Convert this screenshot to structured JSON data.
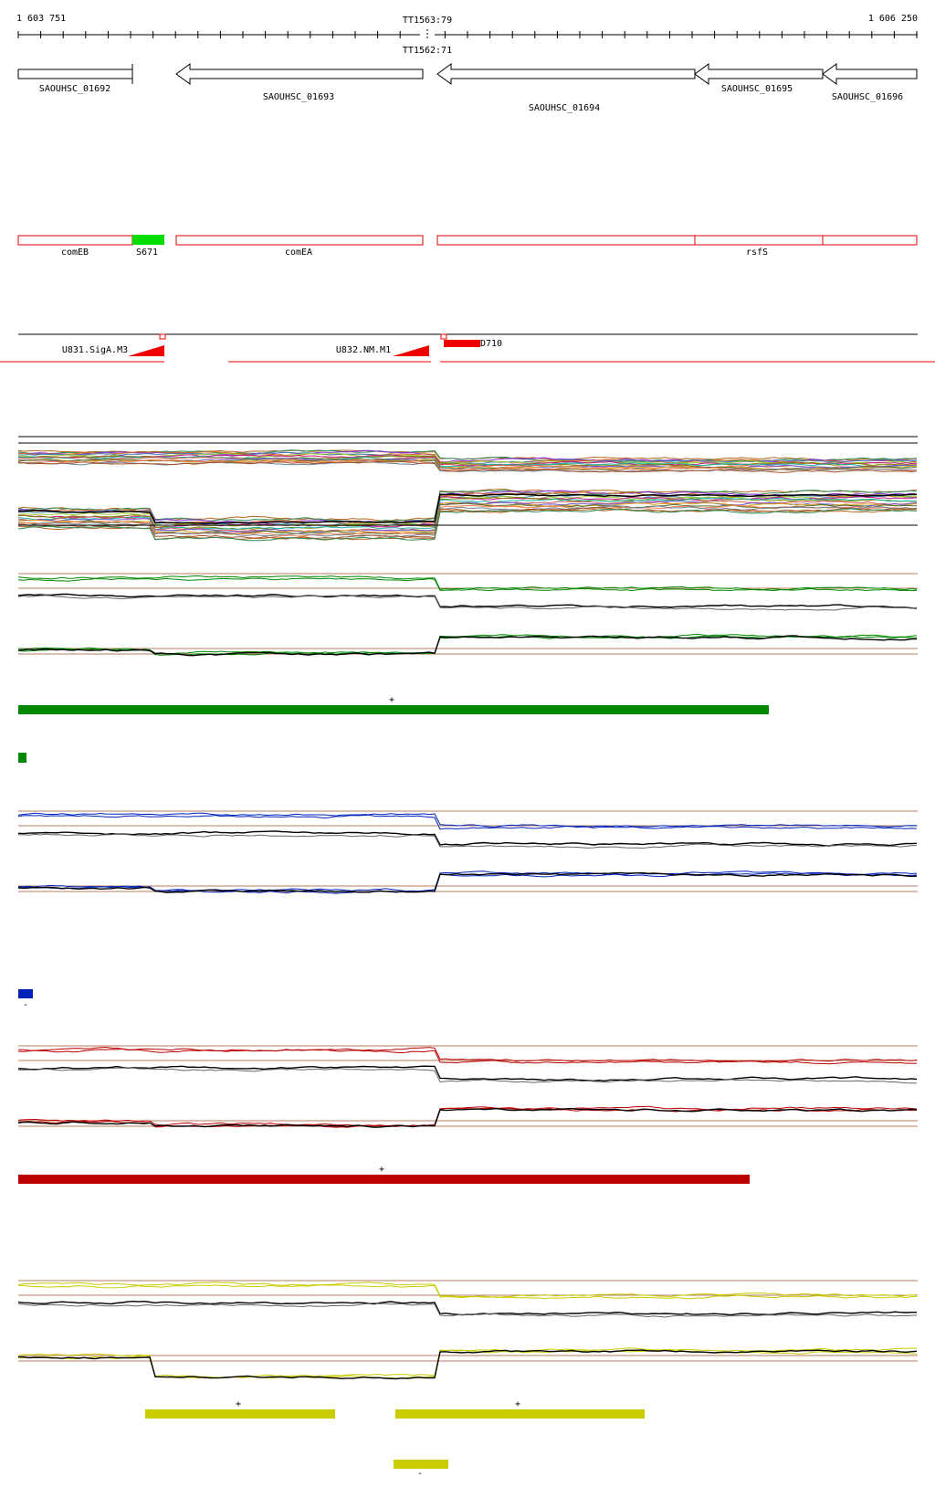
{
  "ruler": {
    "start_label": "1 603 751",
    "end_label": "1 606 250",
    "terminator_top": "TT1563:79",
    "terminator_bottom": "TT1562:71"
  },
  "genes": [
    {
      "name": "SAOUHSC_01692",
      "strand": "+"
    },
    {
      "name": "SAOUHSC_01693",
      "strand": "-"
    },
    {
      "name": "SAOUHSC_01694",
      "strand": "-"
    },
    {
      "name": "SAOUHSC_01695",
      "strand": "-"
    },
    {
      "name": "SAOUHSC_01696",
      "strand": "-"
    }
  ],
  "annotations": {
    "labels": [
      "comEB",
      "S671",
      "comEA",
      "rsfS"
    ],
    "highlight_color": "#00dd00",
    "box_color": "#dd0000"
  },
  "features": {
    "upstream": [
      "U831.SigA.M3",
      "U832.NM.M1"
    ],
    "downstream": [
      "D710"
    ],
    "color": "#ee0000"
  },
  "conditions": [
    {
      "color": "#008800",
      "segment_strands": [
        "+"
      ],
      "small_marker": ""
    },
    {
      "color": "#0022bb",
      "segment_strands": [],
      "small_marker": "-"
    },
    {
      "color": "#bb0000",
      "segment_strands": [
        "+"
      ],
      "small_marker": ""
    },
    {
      "color": "#c8cc00",
      "segment_strands": [
        "+",
        "+"
      ],
      "small_marker": "-"
    }
  ]
}
